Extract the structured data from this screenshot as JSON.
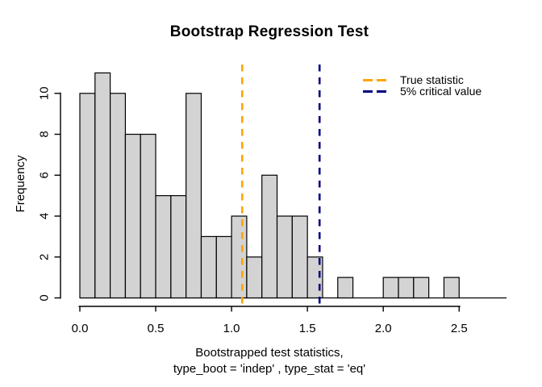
{
  "window": {
    "background": "#ffffff"
  },
  "chart_data": {
    "type": "bar",
    "subtype": "histogram",
    "title": "Bootstrap Regression Test",
    "ylabel": "Frequency",
    "xlabel_line1": "Bootstrapped test statistics,",
    "xlabel_line2": "type_boot = 'indep' , type_stat = 'eq'",
    "bin_start": 0.0,
    "bin_width": 0.1,
    "bin_counts": [
      10,
      11,
      10,
      8,
      8,
      5,
      5,
      10,
      3,
      3,
      4,
      2,
      6,
      4,
      4,
      2,
      0,
      1,
      0,
      0,
      1,
      1,
      1,
      0,
      1
    ],
    "total_samples": 100,
    "xlim": [
      0.0,
      2.5
    ],
    "ylim": [
      0,
      11
    ],
    "x_ticks": [
      {
        "value": 0.0,
        "label": "0.0"
      },
      {
        "value": 0.5,
        "label": "0.5"
      },
      {
        "value": 1.0,
        "label": "1.0"
      },
      {
        "value": 1.5,
        "label": "1.5"
      },
      {
        "value": 2.0,
        "label": "2.0"
      },
      {
        "value": 2.5,
        "label": "2.5"
      }
    ],
    "y_ticks": [
      {
        "value": 0,
        "label": "0"
      },
      {
        "value": 2,
        "label": "2"
      },
      {
        "value": 4,
        "label": "4"
      },
      {
        "value": 6,
        "label": "6"
      },
      {
        "value": 8,
        "label": "8"
      },
      {
        "value": 10,
        "label": "10"
      }
    ],
    "grid": false,
    "bar_fill": "#d3d3d3",
    "bar_stroke": "#000000",
    "axis_color": "#000000",
    "vlines": [
      {
        "name": "true-statistic",
        "value": 1.07,
        "color": "#ffa500",
        "style": "dashed",
        "label": "True statistic"
      },
      {
        "name": "critical-value",
        "value": 1.58,
        "color": "#000080",
        "style": "dashed",
        "label": "5% critical value"
      }
    ],
    "legend": {
      "position": "top-right",
      "entries": [
        {
          "label": "True statistic",
          "color": "#ffa500"
        },
        {
          "label": "5% critical value",
          "color": "#000080"
        }
      ]
    }
  }
}
